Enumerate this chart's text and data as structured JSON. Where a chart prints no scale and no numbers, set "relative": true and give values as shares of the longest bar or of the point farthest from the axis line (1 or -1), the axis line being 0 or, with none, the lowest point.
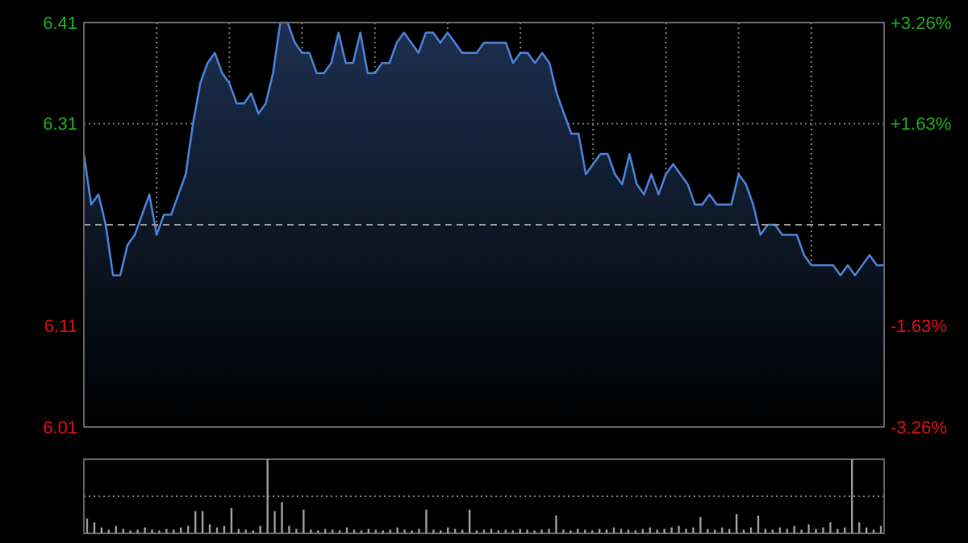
{
  "chart_data": [
    {
      "type": "area",
      "categories": [
        null,
        null,
        null,
        null,
        null,
        null,
        null,
        null,
        null,
        null,
        null,
        null,
        null,
        null,
        null,
        null,
        null,
        null,
        null,
        null,
        null,
        null,
        null,
        null,
        null,
        null,
        null,
        null,
        null,
        null,
        null,
        null,
        null,
        null,
        null,
        null,
        null,
        null,
        null,
        null,
        null,
        null,
        null,
        null,
        null,
        null,
        null,
        null,
        null,
        null,
        null,
        null,
        null,
        null,
        null,
        null,
        null,
        null,
        null,
        null,
        null,
        null,
        null,
        null,
        null,
        null,
        null,
        null,
        null,
        null,
        null,
        null,
        null,
        null,
        null,
        null,
        null,
        null,
        null,
        null,
        null,
        null,
        null,
        null,
        null,
        null,
        null,
        null,
        null,
        null,
        null,
        null,
        null,
        null,
        null,
        null,
        null,
        null,
        null,
        null,
        null,
        null,
        null,
        null,
        null,
        null,
        null,
        null,
        null,
        null,
        null
      ],
      "series": [
        {
          "color": "#4a7fd4",
          "values": [
            6.28,
            6.23,
            6.24,
            6.21,
            6.16,
            6.16,
            6.19,
            6.2,
            6.22,
            6.24,
            6.2,
            6.22,
            6.22,
            6.24,
            6.26,
            6.31,
            6.35,
            6.37,
            6.38,
            6.36,
            6.35,
            6.33,
            6.33,
            6.34,
            6.32,
            6.33,
            6.36,
            6.41,
            6.41,
            6.39,
            6.38,
            6.38,
            6.36,
            6.36,
            6.37,
            6.4,
            6.37,
            6.37,
            6.4,
            6.36,
            6.36,
            6.37,
            6.37,
            6.39,
            6.4,
            6.39,
            6.38,
            6.4,
            6.4,
            6.39,
            6.4,
            6.39,
            6.38,
            6.38,
            6.38,
            6.39,
            6.39,
            6.39,
            6.39,
            6.37,
            6.38,
            6.38,
            6.37,
            6.38,
            6.37,
            6.34,
            6.32,
            6.3,
            6.3,
            6.26,
            6.27,
            6.28,
            6.28,
            6.26,
            6.25,
            6.28,
            6.25,
            6.24,
            6.26,
            6.24,
            6.26,
            6.27,
            6.26,
            6.25,
            6.23,
            6.23,
            6.24,
            6.23,
            6.23,
            6.23,
            6.26,
            6.25,
            6.23,
            6.2,
            6.21,
            6.21,
            6.2,
            6.2,
            6.2,
            6.18,
            6.17,
            6.17,
            6.17,
            6.17,
            6.16,
            6.17,
            6.16,
            6.17,
            6.18,
            6.17,
            6.17
          ]
        }
      ],
      "ylim": [
        6.01,
        6.41
      ],
      "yticks": [
        6.01,
        6.11,
        6.31,
        6.41
      ],
      "y2lim": [
        -3.26,
        3.26
      ],
      "y2ticks": [
        {
          "value": -3.26,
          "label": "-3.26%"
        },
        {
          "value": -1.63,
          "label": "-1.63%"
        },
        {
          "value": 1.63,
          "label": "+1.63%"
        },
        {
          "value": 3.26,
          "label": "+3.26%"
        }
      ],
      "ref_lines": [
        {
          "axis": "y",
          "value": 6.21,
          "line_style": "dashed"
        }
      ],
      "grid": true
    },
    {
      "type": "bar",
      "relative": true,
      "ref_lines": [
        {
          "axis": "y",
          "value": 0.5,
          "line_style": "dotted"
        }
      ],
      "categories": [
        null,
        null,
        null,
        null,
        null,
        null,
        null,
        null,
        null,
        null,
        null,
        null,
        null,
        null,
        null,
        null,
        null,
        null,
        null,
        null,
        null,
        null,
        null,
        null,
        null,
        null,
        null,
        null,
        null,
        null,
        null,
        null,
        null,
        null,
        null,
        null,
        null,
        null,
        null,
        null,
        null,
        null,
        null,
        null,
        null,
        null,
        null,
        null,
        null,
        null,
        null,
        null,
        null,
        null,
        null,
        null,
        null,
        null,
        null,
        null,
        null,
        null,
        null,
        null,
        null,
        null,
        null,
        null,
        null,
        null,
        null,
        null,
        null,
        null,
        null,
        null,
        null,
        null,
        null,
        null,
        null,
        null,
        null,
        null,
        null,
        null,
        null,
        null,
        null,
        null,
        null,
        null,
        null,
        null,
        null,
        null,
        null,
        null,
        null,
        null,
        null,
        null,
        null,
        null,
        null,
        null,
        null,
        null,
        null,
        null,
        null
      ],
      "series": [
        {
          "color": "#9a9a9a",
          "values": [
            0.2,
            0.15,
            0.08,
            0.05,
            0.1,
            0.06,
            0.04,
            0.05,
            0.08,
            0.05,
            0.04,
            0.06,
            0.05,
            0.08,
            0.1,
            0.3,
            0.3,
            0.12,
            0.08,
            0.1,
            0.34,
            0.06,
            0.05,
            0.04,
            0.1,
            1,
            0.3,
            0.42,
            0.1,
            0.06,
            0.32,
            0.05,
            0.04,
            0.06,
            0.05,
            0.04,
            0.08,
            0.05,
            0.04,
            0.06,
            0.05,
            0.04,
            0.05,
            0.08,
            0.05,
            0.04,
            0.06,
            0.32,
            0.05,
            0.04,
            0.08,
            0.06,
            0.05,
            0.32,
            0.04,
            0.05,
            0.06,
            0.04,
            0.05,
            0.04,
            0.06,
            0.05,
            0.04,
            0.05,
            0.06,
            0.24,
            0.05,
            0.04,
            0.06,
            0.05,
            0.04,
            0.06,
            0.05,
            0.08,
            0.06,
            0.05,
            0.04,
            0.06,
            0.08,
            0.05,
            0.06,
            0.08,
            0.1,
            0.06,
            0.08,
            0.22,
            0.06,
            0.05,
            0.08,
            0.06,
            0.26,
            0.05,
            0.08,
            0.24,
            0.06,
            0.05,
            0.08,
            0.06,
            0.1,
            0.05,
            0.12,
            0.06,
            0.08,
            0.15,
            0.06,
            0.08,
            1,
            0.15,
            0.08,
            0.05,
            0.1
          ]
        }
      ]
    }
  ]
}
